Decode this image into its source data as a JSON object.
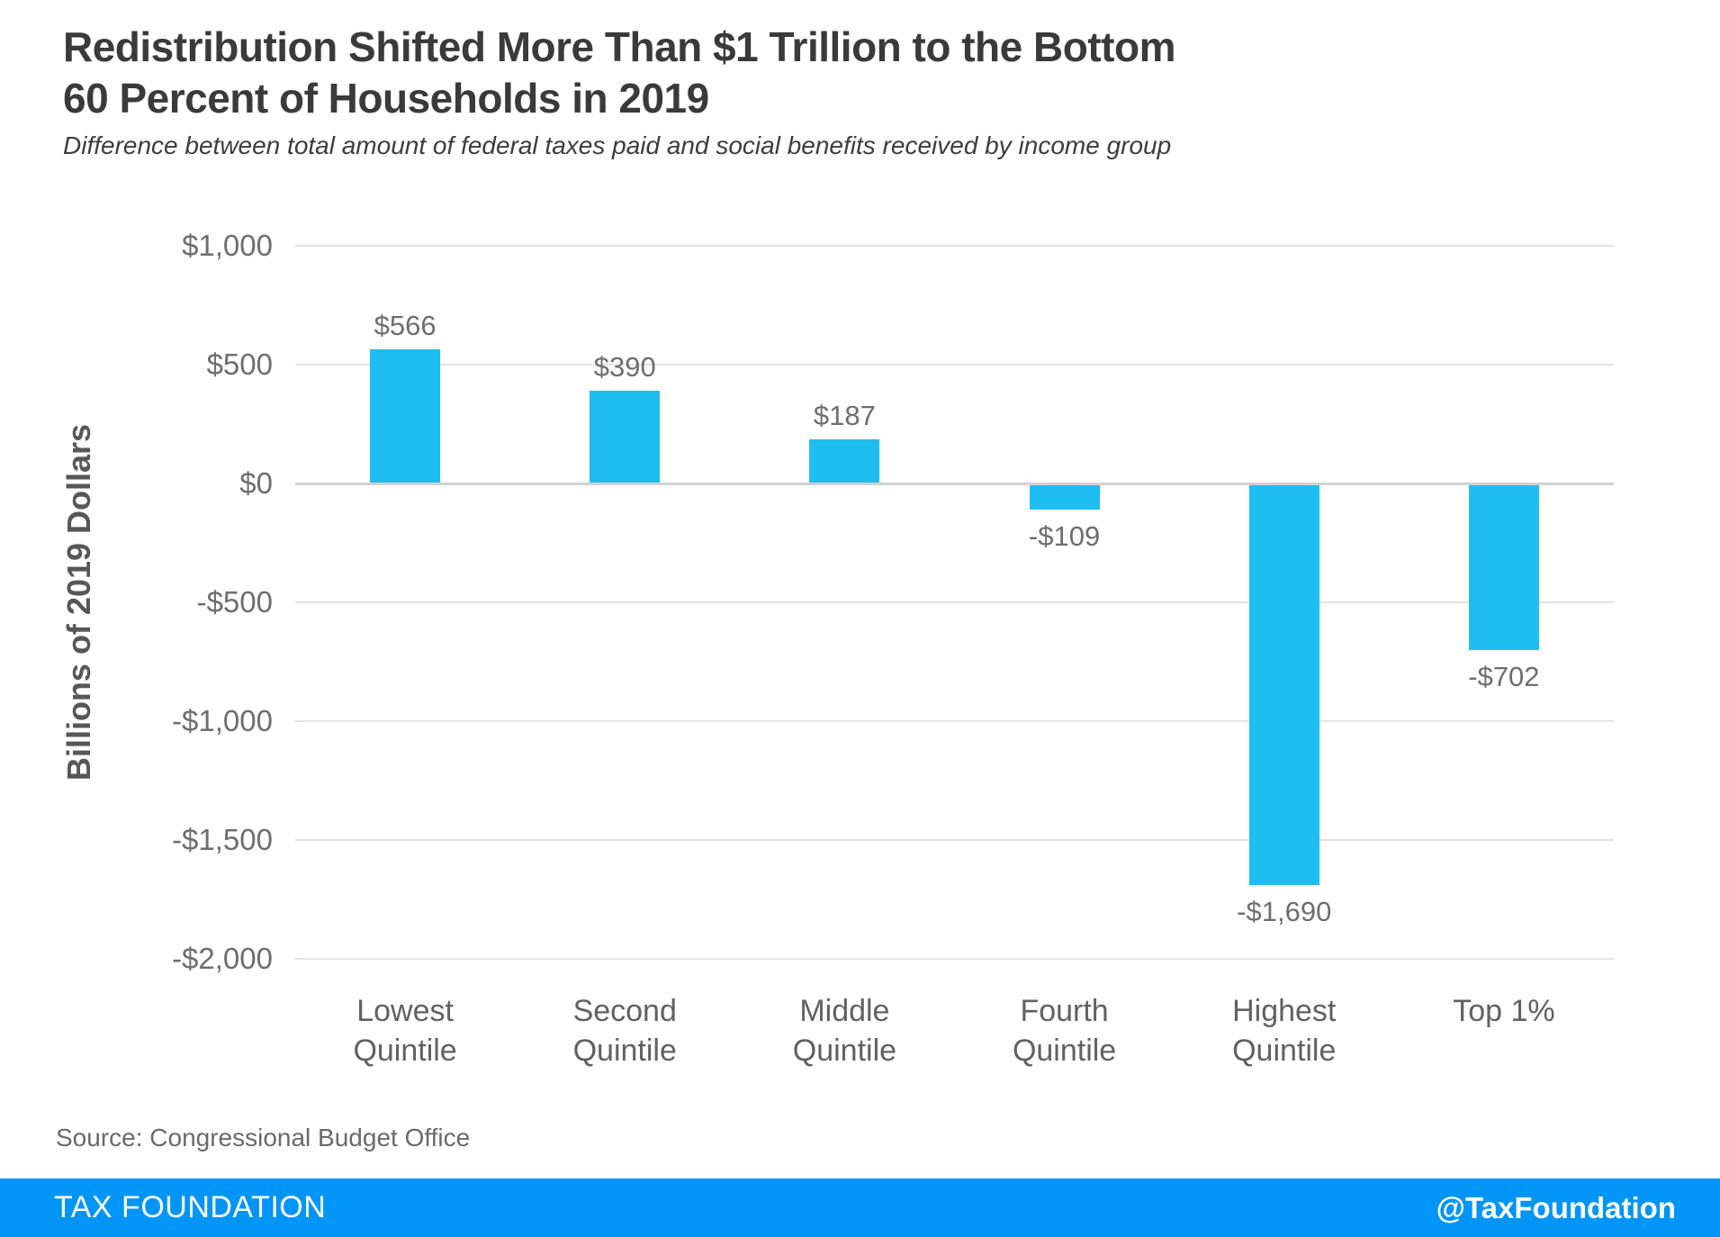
{
  "header": {
    "title_lines": [
      "Redistribution Shifted More Than $1 Trillion to the Bottom",
      "60 Percent of Households in 2019"
    ],
    "subtitle": "Difference between total amount of federal taxes paid and social benefits received by income group"
  },
  "chart_data": {
    "type": "bar",
    "title": "Redistribution Shifted More Than $1 Trillion to the Bottom 60 Percent of Households in 2019",
    "subtitle": "Difference between total amount of federal taxes paid and social benefits received by income group",
    "categories": [
      "Lowest Quintile",
      "Second Quintile",
      "Middle Quintile",
      "Fourth Quintile",
      "Highest Quintile",
      "Top 1%"
    ],
    "category_lines": [
      [
        "Lowest",
        "Quintile"
      ],
      [
        "Second",
        "Quintile"
      ],
      [
        "Middle",
        "Quintile"
      ],
      [
        "Fourth",
        "Quintile"
      ],
      [
        "Highest",
        "Quintile"
      ],
      [
        "Top 1%"
      ]
    ],
    "values": [
      566,
      390,
      187,
      -109,
      -1690,
      -702
    ],
    "value_labels": [
      "$566",
      "$390",
      "$187",
      "-$109",
      "-$1,690",
      "-$702"
    ],
    "xlabel": "",
    "ylabel": "Billions of 2019 Dollars",
    "ylim": [
      -2000,
      1000
    ],
    "yticks": [
      1000,
      500,
      0,
      -500,
      -1000,
      -1500,
      -2000
    ],
    "ytick_labels": [
      "$1,000",
      "$500",
      "$0",
      "-$500",
      "-$1,000",
      "-$1,500",
      "-$2,000"
    ],
    "bar_color": "#1FBEF0",
    "grid": true,
    "legend": false
  },
  "footer": {
    "source": "Source: Congressional Budget Office",
    "brand": "TAX FOUNDATION",
    "handle": "@TaxFoundation",
    "bar_color": "#0095F7"
  }
}
